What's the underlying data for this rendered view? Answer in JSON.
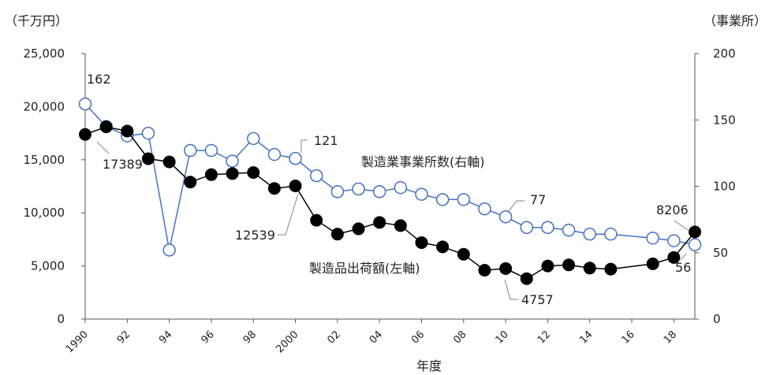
{
  "chart_data": {
    "type": "line",
    "xlabel": "年度",
    "left_axis": {
      "unit_label": "（千万円）",
      "range": [
        0,
        25000
      ],
      "ticks": [
        "0",
        "5,000",
        "10,000",
        "15,000",
        "20,000",
        "25,000"
      ]
    },
    "right_axis": {
      "unit_label": "（事業所）",
      "range": [
        0,
        200
      ],
      "ticks": [
        "0",
        "50",
        "100",
        "150",
        "200"
      ]
    },
    "x_range": [
      1990,
      2019
    ],
    "x_ticks": [
      {
        "year": 1990,
        "label": "1990"
      },
      {
        "year": 1992,
        "label": "92"
      },
      {
        "year": 1994,
        "label": "94"
      },
      {
        "year": 1996,
        "label": "96"
      },
      {
        "year": 1998,
        "label": "98"
      },
      {
        "year": 2000,
        "label": "2000"
      },
      {
        "year": 2002,
        "label": "02"
      },
      {
        "year": 2004,
        "label": "04"
      },
      {
        "year": 2006,
        "label": "06"
      },
      {
        "year": 2008,
        "label": "08"
      },
      {
        "year": 2010,
        "label": "10"
      },
      {
        "year": 2012,
        "label": "12"
      },
      {
        "year": 2014,
        "label": "14"
      },
      {
        "year": 2016,
        "label": "16"
      },
      {
        "year": 2018,
        "label": "18"
      }
    ],
    "grid": false,
    "series": [
      {
        "name": "製造業事業所数(右軸)",
        "axis": "right",
        "color": "#4472c4",
        "marker": "open-circle",
        "points": [
          [
            1990,
            162
          ],
          [
            1991,
            145
          ],
          [
            1992,
            138
          ],
          [
            1993,
            140
          ],
          [
            1994,
            52
          ],
          [
            1995,
            127
          ],
          [
            1996,
            127
          ],
          [
            1997,
            119
          ],
          [
            1998,
            136
          ],
          [
            1999,
            124
          ],
          [
            2000,
            121
          ],
          [
            2001,
            108
          ],
          [
            2002,
            96
          ],
          [
            2003,
            98
          ],
          [
            2004,
            96
          ],
          [
            2005,
            99
          ],
          [
            2006,
            94
          ],
          [
            2007,
            90
          ],
          [
            2008,
            90
          ],
          [
            2009,
            83
          ],
          [
            2010,
            77
          ],
          [
            2011,
            69
          ],
          [
            2012,
            69
          ],
          [
            2013,
            67
          ],
          [
            2014,
            64
          ],
          [
            2015,
            64
          ],
          [
            2017,
            61
          ],
          [
            2018,
            59
          ],
          [
            2019,
            56
          ]
        ]
      },
      {
        "name": "製造品出荷額(左軸)",
        "axis": "left",
        "color": "#000000",
        "marker": "filled-circle",
        "points": [
          [
            1990,
            17389
          ],
          [
            1991,
            18100
          ],
          [
            1992,
            17700
          ],
          [
            1993,
            15100
          ],
          [
            1994,
            14800
          ],
          [
            1995,
            12900
          ],
          [
            1996,
            13600
          ],
          [
            1997,
            13700
          ],
          [
            1998,
            13800
          ],
          [
            1999,
            12300
          ],
          [
            2000,
            12539
          ],
          [
            2001,
            9300
          ],
          [
            2002,
            8000
          ],
          [
            2003,
            8500
          ],
          [
            2004,
            9100
          ],
          [
            2005,
            8800
          ],
          [
            2006,
            7200
          ],
          [
            2007,
            6800
          ],
          [
            2008,
            6100
          ],
          [
            2009,
            4600
          ],
          [
            2010,
            4757
          ],
          [
            2011,
            3800
          ],
          [
            2012,
            5000
          ],
          [
            2013,
            5100
          ],
          [
            2014,
            4800
          ],
          [
            2015,
            4700
          ],
          [
            2017,
            5200
          ],
          [
            2018,
            5800
          ],
          [
            2019,
            8206
          ]
        ]
      }
    ],
    "annotations": [
      {
        "text": "162",
        "series": 0,
        "year": 1990
      },
      {
        "text": "17389",
        "series": 1,
        "year": 1990
      },
      {
        "text": "121",
        "series": 0,
        "year": 2000
      },
      {
        "text": "12539",
        "series": 1,
        "year": 2000
      },
      {
        "text": "77",
        "series": 0,
        "year": 2010
      },
      {
        "text": "4757",
        "series": 1,
        "year": 2010
      },
      {
        "text": "8206",
        "series": 1,
        "year": 2019
      },
      {
        "text": "56",
        "series": 0,
        "year": 2019
      }
    ]
  }
}
